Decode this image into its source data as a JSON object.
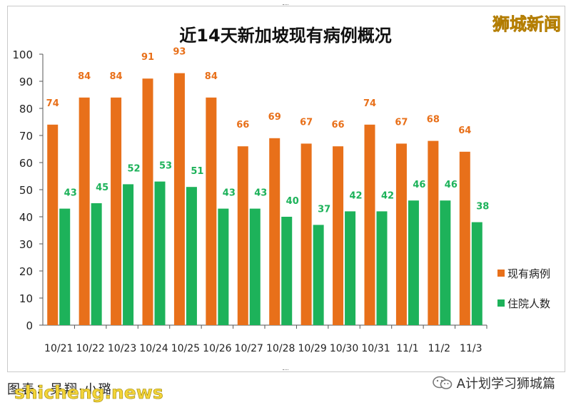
{
  "page": {
    "brand_top": "狮城新闻",
    "footer_left": "图表：吴翔·小璐",
    "watermark": "shicheng.news",
    "footer_right": "A计划学习狮城篇"
  },
  "chart_data": {
    "type": "bar",
    "title": "近14天新加坡现有病例概况",
    "xlabel": "",
    "ylabel": "",
    "ylim": [
      0,
      100
    ],
    "yticks": [
      0,
      10,
      20,
      30,
      40,
      50,
      60,
      70,
      80,
      90,
      100
    ],
    "grid": false,
    "legend_position": "right",
    "categories": [
      "10/21",
      "10/22",
      "10/23",
      "10/24",
      "10/25",
      "10/26",
      "10/27",
      "10/28",
      "10/29",
      "10/30",
      "10/31",
      "11/1",
      "11/2",
      "11/3"
    ],
    "series": [
      {
        "name": "现有病例",
        "color": "#e8701a",
        "values": [
          74,
          84,
          84,
          91,
          93,
          84,
          66,
          69,
          67,
          66,
          74,
          67,
          68,
          64
        ]
      },
      {
        "name": "住院人数",
        "color": "#1db25a",
        "values": [
          43,
          45,
          52,
          53,
          51,
          43,
          43,
          40,
          37,
          42,
          42,
          46,
          46,
          38
        ]
      }
    ]
  }
}
